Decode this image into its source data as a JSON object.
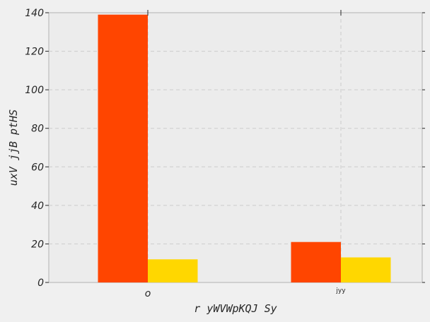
{
  "chart_data": {
    "type": "bar",
    "categories": [
      "o",
      "jyy"
    ],
    "series": [
      {
        "color": "#ff4500",
        "values": [
          139,
          21
        ]
      },
      {
        "color": "#ffd700",
        "values": [
          12,
          13
        ]
      }
    ],
    "title": "",
    "xlabel": "r yWVWpKQJ Sy",
    "ylabel": "uxV jjB ptHS",
    "ylim": [
      0,
      140
    ],
    "yticks": [
      0,
      20,
      40,
      60,
      80,
      100,
      120,
      140
    ],
    "grid": true
  }
}
